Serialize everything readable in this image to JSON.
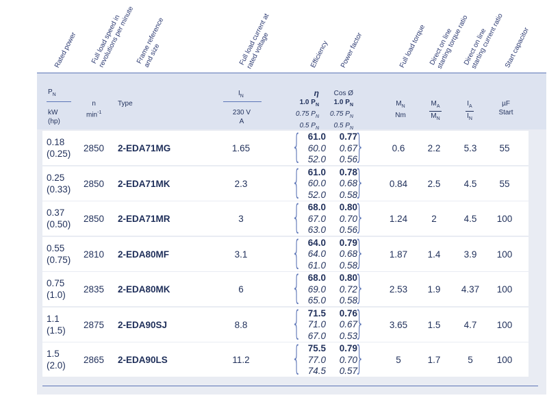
{
  "col_titles": [
    [
      "Rated power"
    ],
    [
      "Full load speed in",
      "revolutions per minute"
    ],
    [
      "Frame reference",
      "and size"
    ],
    [
      "Full load current at",
      "rated voltage"
    ],
    [
      "Efficiency"
    ],
    [
      "Power factor"
    ],
    [
      "Full load torque"
    ],
    [
      "Direct on line",
      "starting torque ratio"
    ],
    [
      "Direct on line",
      "starting current ratio"
    ],
    [
      "Start capacitor"
    ]
  ],
  "header": {
    "pn": "P",
    "pn_sub": "N",
    "kw": "kW",
    "hp": "(hp)",
    "n": "n",
    "min": "min",
    "min_sup": "-1",
    "type": "Type",
    "in": "I",
    "in_sub": "N",
    "v230": "230 V",
    "a": "A",
    "eta": "η",
    "cos": "Cos Ø",
    "load1": "1.0 P",
    "load075": "0.75 P",
    "load05": "0.5 P",
    "load_sub": "N",
    "mn": "M",
    "mn_sub": "N",
    "nm": "Nm",
    "ma": "M",
    "ma_sub": "A",
    "ma_den": "M",
    "ma_den_sub": "N",
    "ia": "I",
    "ia_sub": "A",
    "ia_den": "I",
    "ia_den_sub": "N",
    "uf": "µF",
    "start": "Start"
  },
  "rows": [
    {
      "kw": "0.18",
      "hp": "(0.25)",
      "n": "2850",
      "type": "2-EDA71MG",
      "in": "1.65",
      "eta": [
        "61.0",
        "60.0",
        "52.0"
      ],
      "cos": [
        "0.77",
        "0.67",
        "0.56"
      ],
      "mn": "0.6",
      "ma": "2.2",
      "ia": "5.3",
      "uf": "55"
    },
    {
      "kw": "0.25",
      "hp": "(0.33)",
      "n": "2850",
      "type": "2-EDA71MK",
      "in": "2.3",
      "eta": [
        "61.0",
        "60.0",
        "52.0"
      ],
      "cos": [
        "0.78",
        "0.68",
        "0.58"
      ],
      "mn": "0.84",
      "ma": "2.5",
      "ia": "4.5",
      "uf": "55"
    },
    {
      "kw": "0.37",
      "hp": "(0.50)",
      "n": "2850",
      "type": "2-EDA71MR",
      "in": "3",
      "eta": [
        "68.0",
        "67.0",
        "63.0"
      ],
      "cos": [
        "0.80",
        "0.70",
        "0.56"
      ],
      "mn": "1.24",
      "ma": "2",
      "ia": "4.5",
      "uf": "100"
    },
    {
      "kw": "0.55",
      "hp": "(0.75)",
      "n": "2810",
      "type": "2-EDA80MF",
      "in": "3.1",
      "eta": [
        "64.0",
        "64.0",
        "61.0"
      ],
      "cos": [
        "0.79",
        "0.68",
        "0.58"
      ],
      "mn": "1.87",
      "ma": "1.4",
      "ia": "3.9",
      "uf": "100"
    },
    {
      "kw": "0.75",
      "hp": "(1.0)",
      "n": "2835",
      "type": "2-EDA80MK",
      "in": "6",
      "eta": [
        "68.0",
        "69.0",
        "65.0"
      ],
      "cos": [
        "0.80",
        "0.72",
        "0.58"
      ],
      "mn": "2.53",
      "ma": "1.9",
      "ia": "4.37",
      "uf": "100"
    },
    {
      "kw": "1.1",
      "hp": "(1.5)",
      "n": "2875",
      "type": "2-EDA90SJ",
      "in": "8.8",
      "eta": [
        "71.5",
        "71.0",
        "67.0"
      ],
      "cos": [
        "0.76",
        "0.67",
        "0.53"
      ],
      "mn": "3.65",
      "ma": "1.5",
      "ia": "4.7",
      "uf": "100"
    },
    {
      "kw": "1.5",
      "hp": "(2.0)",
      "n": "2865",
      "type": "2-EDA90LS",
      "in": "11.2",
      "eta": [
        "75.5",
        "77.0",
        "74.5"
      ],
      "cos": [
        "0.79",
        "0.70",
        "0.57"
      ],
      "mn": "5",
      "ma": "1.7",
      "ia": "5",
      "uf": "100"
    }
  ]
}
